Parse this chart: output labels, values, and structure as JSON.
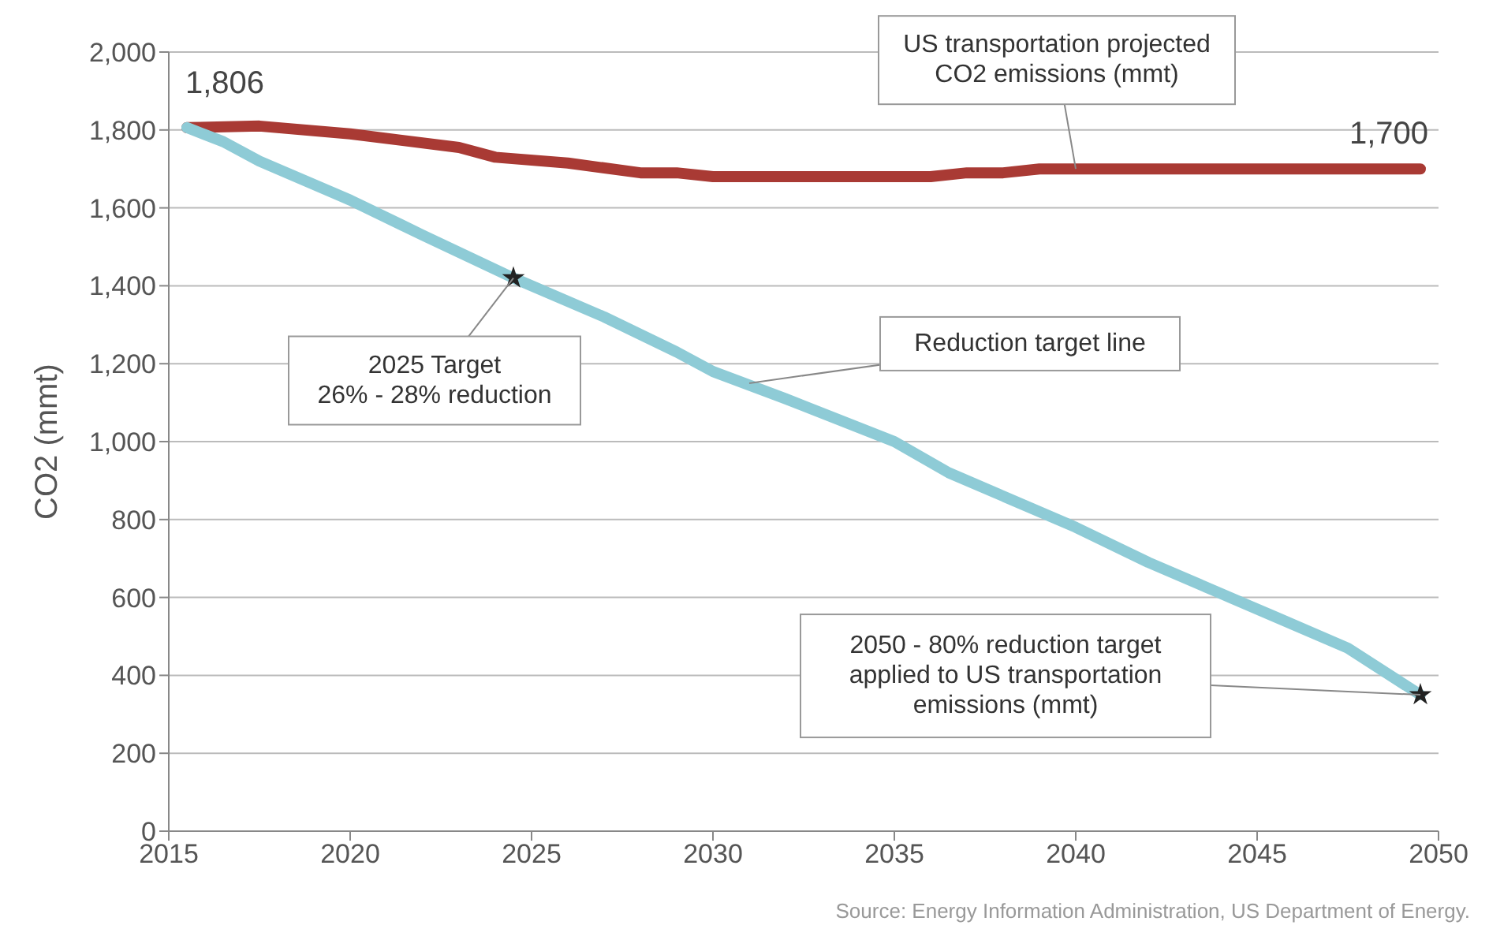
{
  "chart_data": {
    "type": "line",
    "ylabel": "CO2 (mmt)",
    "xlim": [
      2015,
      2050
    ],
    "xticks": [
      2015,
      2020,
      2025,
      2030,
      2035,
      2040,
      2045,
      2050
    ],
    "ylim": [
      0,
      2000
    ],
    "yticks": [
      0,
      200,
      400,
      600,
      800,
      {
        "value": 1000,
        "label": "1,000"
      },
      {
        "value": 1200,
        "label": "1,200"
      },
      {
        "value": 1400,
        "label": "1,400"
      },
      {
        "value": 1600,
        "label": "1,600"
      },
      {
        "value": 1800,
        "label": "1,800"
      },
      {
        "value": 2000,
        "label": "2,000"
      }
    ],
    "grid": "y",
    "series": [
      {
        "color": "#a93a34",
        "x": [
          2015.5,
          2017.5,
          2020,
          2023,
          2024,
          2026,
          2028,
          2029,
          2030,
          2036,
          2037,
          2038,
          2039,
          2049.5
        ],
        "values": [
          1806,
          1810,
          1790,
          1755,
          1730,
          1715,
          1690,
          1690,
          1680,
          1680,
          1690,
          1690,
          1700,
          1700
        ]
      },
      {
        "color": "#8ecbd6",
        "x": [
          2015.5,
          2016.5,
          2017.5,
          2020,
          2022,
          2024.5,
          2027,
          2029,
          2030,
          2032,
          2035,
          2036.5,
          2038,
          2040,
          2042,
          2044,
          2045.5,
          2047.5,
          2049.5
        ],
        "values": [
          1806,
          1770,
          1720,
          1620,
          1530,
          1420,
          1320,
          1230,
          1180,
          1110,
          1000,
          920,
          860,
          780,
          690,
          610,
          550,
          470,
          350
        ]
      },
      {
        "type": "scatter",
        "marker": "star",
        "color": "#222222",
        "x": [
          2024.5,
          2049.5
        ],
        "values": [
          1420,
          350
        ]
      }
    ],
    "annotations": [
      {
        "text": "1,806",
        "x": 2015.5,
        "y": 1806
      },
      {
        "text": "1,700",
        "x": 2049.5,
        "y": 1700
      },
      {
        "text": "US transportation projected CO2 emissions (mmt)",
        "x": 2040,
        "y": 1700
      },
      {
        "text": "Reduction target line",
        "x": 2031,
        "y": 1150
      },
      {
        "text": "2025 Target 26% - 28% reduction",
        "x": 2024.5,
        "y": 1420
      },
      {
        "text": "2050 - 80% reduction target applied to US transportation emissions (mmt)",
        "x": 2049.5,
        "y": 350
      },
      "Source: Energy Information Administration, US Department of Energy."
    ]
  }
}
